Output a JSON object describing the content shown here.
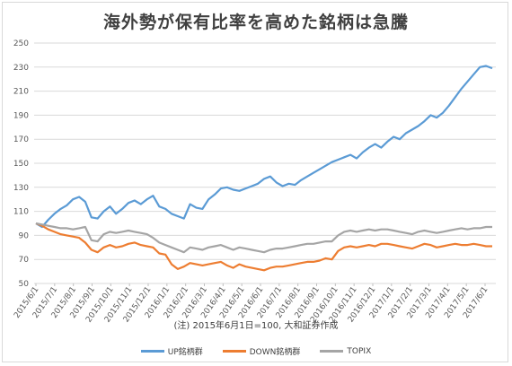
{
  "chart_data": {
    "type": "line",
    "title": "海外勢が保有比率を高めた銘柄は急騰",
    "note": "(注) 2015年6月1日=100, 大和証券作成",
    "ylim": [
      50,
      250
    ],
    "yticks": [
      50,
      70,
      90,
      110,
      130,
      150,
      170,
      190,
      210,
      230,
      250
    ],
    "x_tick_labels": [
      "2015/6/1",
      "2015/7/1",
      "2015/8/1",
      "2015/9/1",
      "2015/10/1",
      "2015/11/1",
      "2015/12/1",
      "2016/1/1",
      "2016/2/1",
      "2016/3/1",
      "2016/4/1",
      "2016/5/1",
      "2016/6/1",
      "2016/7/1",
      "2016/8/1",
      "2016/9/1",
      "2016/10/1",
      "2016/11/1",
      "2016/12/1",
      "2017/1/1",
      "2017/2/1",
      "2017/3/1",
      "2017/4/1",
      "2017/5/1",
      "2017/6/1"
    ],
    "grid": true,
    "legend_position": "bottom",
    "series": [
      {
        "name": "UP銘柄群",
        "color": "#5b9bd5",
        "values": [
          100,
          97,
          103,
          108,
          112,
          115,
          120,
          122,
          118,
          105,
          104,
          110,
          114,
          108,
          112,
          117,
          119,
          116,
          120,
          123,
          114,
          112,
          108,
          106,
          104,
          116,
          113,
          112,
          120,
          124,
          129,
          130,
          128,
          127,
          129,
          131,
          133,
          137,
          139,
          134,
          131,
          133,
          132,
          136,
          139,
          142,
          145,
          148,
          151,
          153,
          155,
          157,
          154,
          159,
          163,
          166,
          163,
          168,
          172,
          170,
          175,
          178,
          181,
          185,
          190,
          188,
          192,
          198,
          205,
          212,
          218,
          224,
          230,
          231,
          229
        ]
      },
      {
        "name": "DOWN銘柄群",
        "color": "#ed7d31",
        "values": [
          100,
          98,
          95,
          93,
          91,
          90,
          89,
          88,
          84,
          78,
          76,
          80,
          82,
          80,
          81,
          83,
          84,
          82,
          81,
          80,
          75,
          74,
          66,
          62,
          64,
          67,
          66,
          65,
          66,
          67,
          68,
          65,
          63,
          66,
          64,
          63,
          62,
          61,
          63,
          64,
          64,
          65,
          66,
          67,
          68,
          68,
          69,
          71,
          70,
          77,
          80,
          81,
          80,
          81,
          82,
          81,
          83,
          83,
          82,
          81,
          80,
          79,
          81,
          83,
          82,
          80,
          81,
          82,
          83,
          82,
          82,
          83,
          82,
          81,
          81
        ]
      },
      {
        "name": "TOPIX",
        "color": "#a5a5a5",
        "values": [
          100,
          99,
          98,
          97,
          96,
          96,
          95,
          96,
          97,
          86,
          85,
          91,
          93,
          92,
          93,
          94,
          93,
          92,
          91,
          88,
          84,
          82,
          80,
          78,
          76,
          80,
          79,
          78,
          80,
          81,
          82,
          80,
          78,
          80,
          79,
          78,
          77,
          76,
          78,
          79,
          79,
          80,
          81,
          82,
          83,
          83,
          84,
          85,
          85,
          90,
          93,
          94,
          93,
          94,
          95,
          94,
          95,
          95,
          94,
          93,
          92,
          91,
          93,
          94,
          93,
          92,
          93,
          94,
          95,
          96,
          95,
          96,
          96,
          97,
          97
        ]
      }
    ]
  }
}
